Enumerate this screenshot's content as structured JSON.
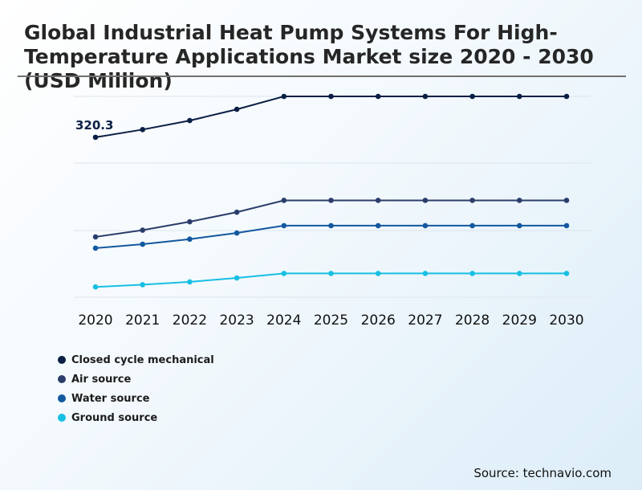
{
  "title": "Global Industrial Heat Pump Systems For High-Temperature Applications Market size 2020 - 2030 (USD Million)",
  "source": "Source: technavio.com",
  "colors": {
    "Closed cycle mechanical": "#0b1f45",
    "Air source": "#2b3d6b",
    "Water source": "#12589e",
    "Ground source": "#17bfe3"
  },
  "chart_data": {
    "type": "line",
    "title": "Global Industrial Heat Pump Systems For High-Temperature Applications Market size 2020 - 2030 (USD Million)",
    "categories": [
      "2020",
      "2021",
      "2022",
      "2023",
      "2024",
      "2025",
      "2026",
      "2027",
      "2028",
      "2029",
      "2030"
    ],
    "series": [
      {
        "name": "Closed cycle mechanical",
        "values": [
          320.3,
          334,
          350,
          370,
          393,
          393,
          393,
          393,
          393,
          393,
          393
        ]
      },
      {
        "name": "Air source",
        "values": [
          143,
          155,
          170,
          187,
          208,
          208,
          208,
          208,
          208,
          208,
          208
        ]
      },
      {
        "name": "Water source",
        "values": [
          123,
          130,
          139,
          150,
          163,
          163,
          163,
          163,
          163,
          163,
          163
        ]
      },
      {
        "name": "Ground source",
        "values": [
          54,
          58,
          63,
          70,
          78,
          78,
          78,
          78,
          78,
          78,
          78
        ]
      }
    ],
    "annotations": [
      {
        "series": "Closed cycle mechanical",
        "index": 0,
        "text": "320.3"
      }
    ],
    "ylim": [
      0,
      393
    ],
    "grid": true,
    "legend_position": "bottom-left"
  }
}
